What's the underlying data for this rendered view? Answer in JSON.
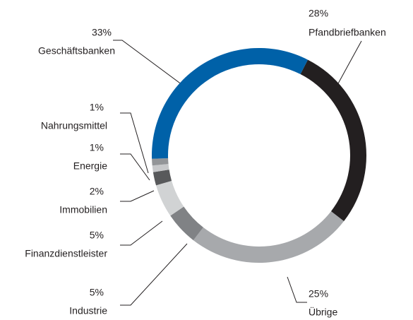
{
  "chart_data": {
    "type": "donut",
    "categories": [
      "Pfandbriefbanken",
      "Übrige",
      "Industrie",
      "Finanzdienstleister",
      "Immobilien",
      "Energie",
      "Nahrungsmittel",
      "Geschäftsbanken"
    ],
    "values": [
      28,
      25,
      5,
      5,
      2,
      1,
      1,
      33
    ],
    "value_labels": [
      "28%",
      "25%",
      "5%",
      "5%",
      "2%",
      "1%",
      "1%",
      "33%"
    ],
    "colors": [
      "#231f20",
      "#a7a9ac",
      "#808285",
      "#d1d3d4",
      "#58595b",
      "#c7c8ca",
      "#939598",
      "#0061a8"
    ]
  }
}
